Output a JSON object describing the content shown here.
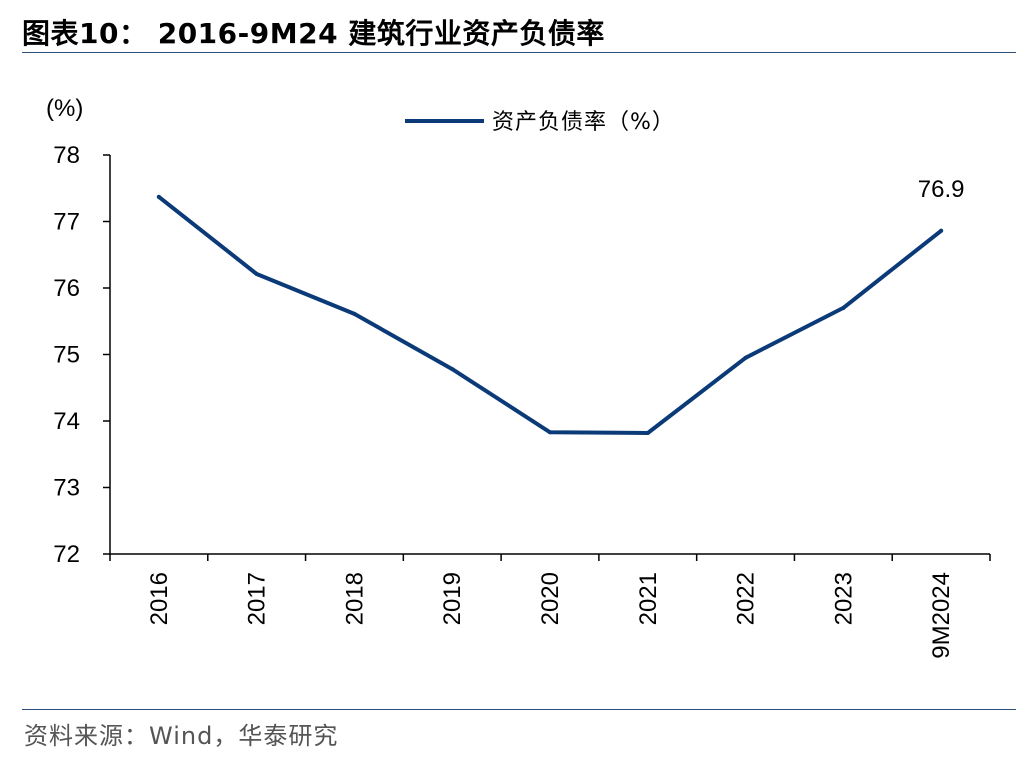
{
  "figure": {
    "title": "图表10： 2016-9M24 建筑行业资产负债率",
    "source": "资料来源：Wind，华泰研究"
  },
  "colors": {
    "series": "#0b3a78",
    "rule": "#2c4f7c",
    "axis": "#000000"
  },
  "chart_data": {
    "type": "line",
    "title": "",
    "xlabel": "",
    "ylabel": "(%)",
    "categories": [
      "2016",
      "2017",
      "2018",
      "2019",
      "2020",
      "2021",
      "2022",
      "2023",
      "9M2024"
    ],
    "series": [
      {
        "name": "资产负债率（%）",
        "values": [
          77.37,
          76.21,
          75.61,
          74.78,
          73.83,
          73.82,
          74.95,
          75.7,
          76.86
        ]
      }
    ],
    "ylim": [
      72,
      78
    ],
    "yticks": [
      "72",
      "73",
      "74",
      "75",
      "76",
      "77",
      "78"
    ],
    "legend_position": "top-center",
    "annotations": [
      {
        "category": "9M2024",
        "text": "76.9"
      }
    ],
    "grid": false
  }
}
